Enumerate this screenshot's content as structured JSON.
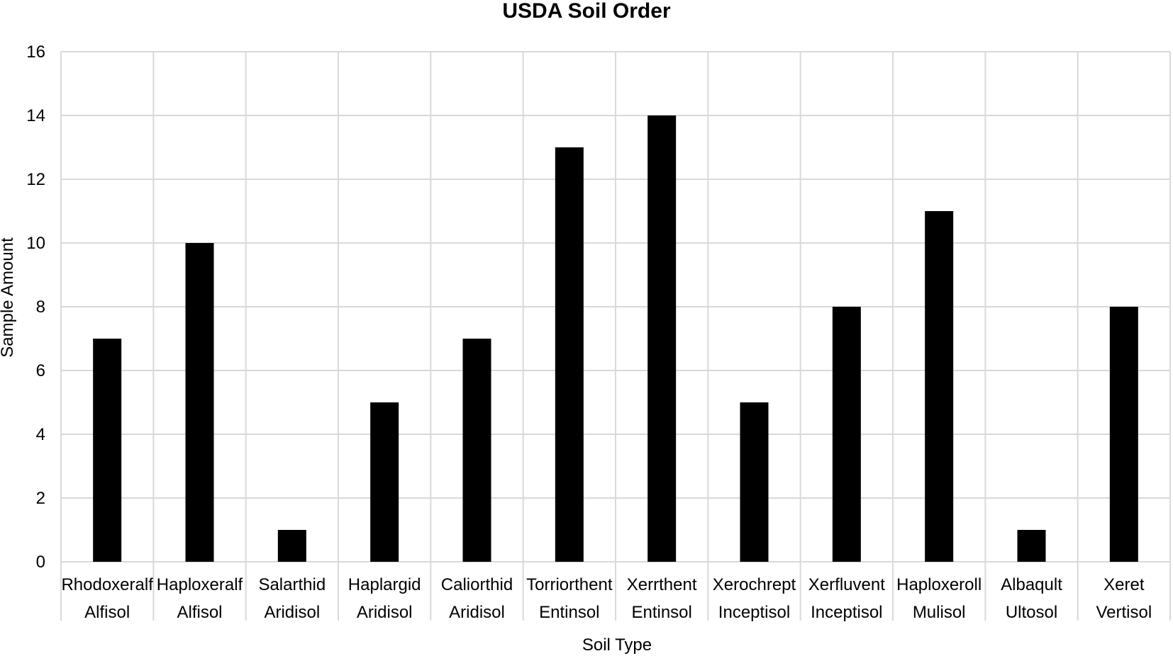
{
  "chart_data": {
    "type": "bar",
    "title": "USDA Soil Order",
    "xlabel": "Soil Type",
    "ylabel": "Sample Amount",
    "ylim": [
      0,
      16
    ],
    "yticks": [
      0,
      2,
      4,
      6,
      8,
      10,
      12,
      14,
      16
    ],
    "grid": true,
    "categories": [
      {
        "name": "Rhodoxeralf",
        "group": "Alfisol"
      },
      {
        "name": "Haploxeralf",
        "group": "Alfisol"
      },
      {
        "name": "Salarthid",
        "group": "Aridisol"
      },
      {
        "name": "Haplargid",
        "group": "Aridisol"
      },
      {
        "name": "Caliorthid",
        "group": "Aridisol"
      },
      {
        "name": "Torriorthent",
        "group": "Entinsol"
      },
      {
        "name": "Xerrthent",
        "group": "Entinsol"
      },
      {
        "name": "Xerochrept",
        "group": "Inceptisol"
      },
      {
        "name": "Xerfluvent",
        "group": "Inceptisol"
      },
      {
        "name": "Haploxeroll",
        "group": "Mulisol"
      },
      {
        "name": "Albaqult",
        "group": "Ultosol"
      },
      {
        "name": "Xeret",
        "group": "Vertisol"
      }
    ],
    "values": [
      7,
      10,
      1,
      5,
      7,
      13,
      14,
      5,
      8,
      11,
      1,
      8
    ],
    "bar_color": "#000000",
    "grid_color": "#d9d9d9"
  }
}
